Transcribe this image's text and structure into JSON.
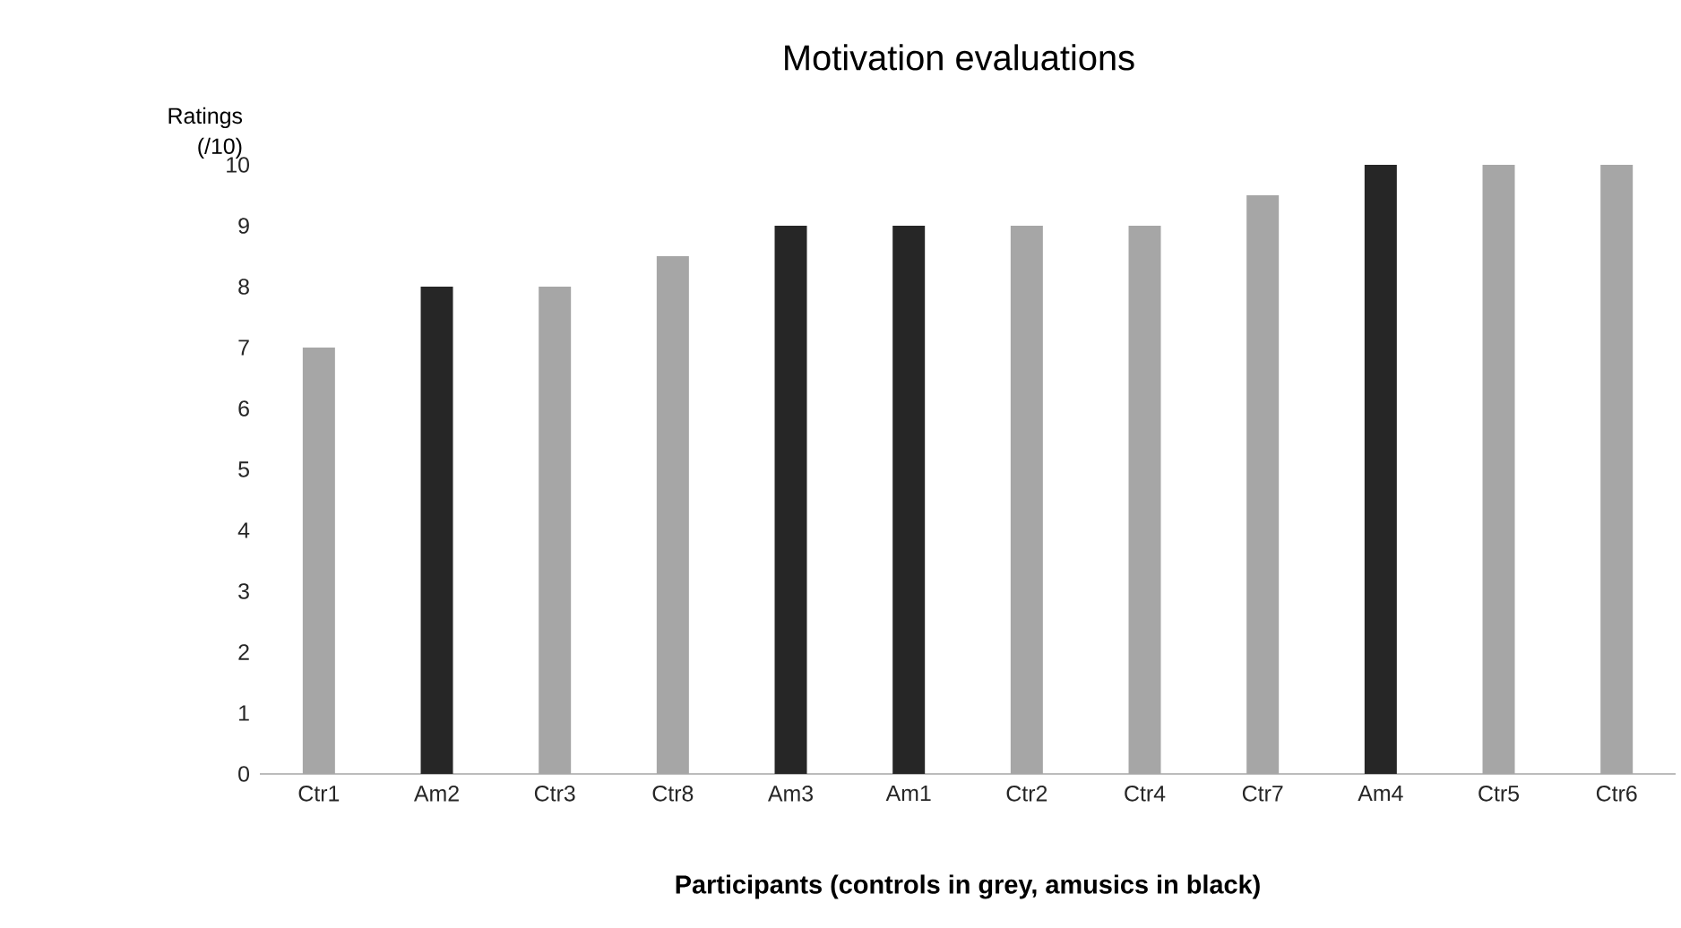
{
  "chart_data": {
    "type": "bar",
    "title": "Motivation evaluations",
    "xlabel": "Participants (controls in grey, amusics in black)",
    "ylabel": "Ratings (/10)",
    "categories": [
      "Ctr1",
      "Am2",
      "Ctr3",
      "Ctr8",
      "Am3",
      "Am1",
      "Ctr2",
      "Ctr4",
      "Ctr7",
      "Am4",
      "Ctr5",
      "Ctr6"
    ],
    "values": [
      7,
      8,
      8,
      8.5,
      9,
      9,
      9,
      9,
      9.5,
      10,
      10,
      10
    ],
    "colors": [
      "#a6a6a6",
      "#262626",
      "#a6a6a6",
      "#a6a6a6",
      "#262626",
      "#262626",
      "#a6a6a6",
      "#a6a6a6",
      "#a6a6a6",
      "#262626",
      "#a6a6a6",
      "#a6a6a6"
    ],
    "ylim": [
      0,
      10
    ],
    "yticks": [
      0,
      1,
      2,
      3,
      4,
      5,
      6,
      7,
      8,
      9,
      10
    ],
    "grid": false
  }
}
